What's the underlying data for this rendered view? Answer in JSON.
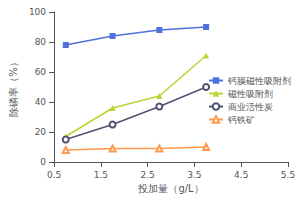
{
  "chart_data": {
    "type": "line",
    "x": [
      0.75,
      1.75,
      2.75,
      3.75
    ],
    "series": [
      {
        "name": "钙膜磁性吸附剂",
        "values": [
          78,
          84,
          88,
          90
        ],
        "marker": "square"
      },
      {
        "name": "磁性吸附剂",
        "values": [
          17,
          36,
          44,
          71
        ],
        "marker": "triangle"
      },
      {
        "name": "商业活性炭",
        "values": [
          15,
          25,
          37,
          50
        ],
        "marker": "circle_open"
      },
      {
        "name": "钙铁矿",
        "values": [
          8,
          9,
          9,
          10
        ],
        "marker": "triangle_open"
      }
    ],
    "xlabel": "投加量（g/L）",
    "ylabel": "除磷率（%）",
    "xlim": [
      0.5,
      5.5
    ],
    "ylim": [
      0,
      100
    ],
    "xticks": [
      0.5,
      1.5,
      2.5,
      3.5,
      4.5,
      5.5
    ],
    "yticks": [
      0,
      20,
      40,
      60,
      80,
      100
    ],
    "grid": false,
    "legend": "right"
  }
}
